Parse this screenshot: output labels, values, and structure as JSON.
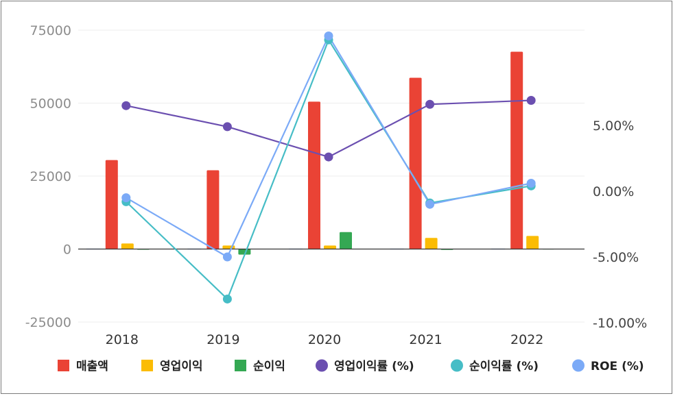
{
  "chart_data": {
    "type": "bar",
    "categories": [
      "2018",
      "2019",
      "2020",
      "2021",
      "2022"
    ],
    "bar_series": [
      {
        "name": "매출액",
        "color": "#ea4335",
        "values": [
          30500,
          27000,
          50500,
          58700,
          67600
        ]
      },
      {
        "name": "영업이익",
        "color": "#fbbc04",
        "values": [
          1900,
          1200,
          1200,
          3800,
          4500
        ]
      },
      {
        "name": "순이익",
        "color": "#34a853",
        "values": [
          -100,
          -1900,
          5800,
          -300,
          100
        ]
      }
    ],
    "line_series": [
      {
        "name": "영업이익률 (%)",
        "color": "#6b4fb0",
        "values": [
          6.5,
          4.9,
          2.6,
          6.6,
          6.9
        ]
      },
      {
        "name": "순이익률 (%)",
        "color": "#46bdc6",
        "values": [
          -0.8,
          -8.2,
          11.5,
          -0.9,
          0.4
        ]
      },
      {
        "name": "ROE (%)",
        "color": "#7baaf7",
        "values": [
          -0.5,
          -5.0,
          11.8,
          -1.0,
          0.6
        ]
      }
    ],
    "left_axis": {
      "min": -25000,
      "max": 75000,
      "ticks": [
        "75000",
        "50000",
        "25000",
        "0",
        "-25000"
      ],
      "tick_values": [
        75000,
        50000,
        25000,
        0,
        -25000
      ]
    },
    "right_axis": {
      "ticks": [
        "5.00%",
        "0.00%",
        "-5.00%",
        "-10.00%"
      ],
      "tick_values": [
        5,
        0,
        -5,
        -10
      ]
    },
    "legend": [
      "매출액",
      "영업이익",
      "순이익",
      "영업이익률 (%)",
      "순이익률 (%)",
      "ROE (%)"
    ],
    "legend_position": "bottom",
    "grid": true
  }
}
